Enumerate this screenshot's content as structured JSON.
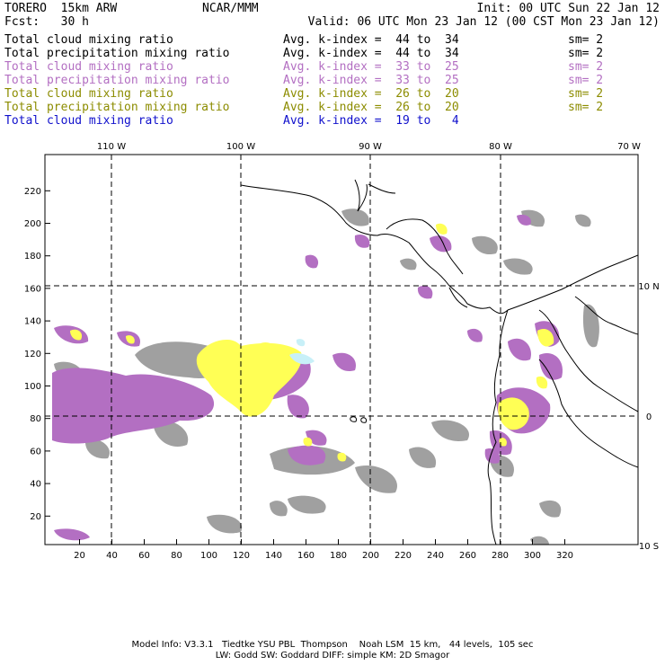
{
  "header": {
    "model": "TORERO  15km ARW",
    "org": "NCAR/MMM",
    "init": "Init: 00 UTC Sun 22 Jan 12",
    "fcst": "Fcst:   30 h",
    "valid": "Valid: 06 UTC Mon 23 Jan 12 (00 CST Mon 23 Jan 12)"
  },
  "legend": [
    {
      "field": "Total cloud mixing ratio",
      "index": "Avg. k-index =  44 to  34",
      "sm": "sm= 2",
      "color": "#000000"
    },
    {
      "field": "Total precipitation mixing ratio",
      "index": "Avg. k-index =  44 to  34",
      "sm": "sm= 2",
      "color": "#000000"
    },
    {
      "field": "Total cloud mixing ratio",
      "index": "Avg. k-index =  33 to  25",
      "sm": "sm= 2",
      "color": "#b36fc2"
    },
    {
      "field": "Total precipitation mixing ratio",
      "index": "Avg. k-index =  33 to  25",
      "sm": "sm= 2",
      "color": "#b36fc2"
    },
    {
      "field": "Total cloud mixing ratio",
      "index": "Avg. k-index =  26 to  20",
      "sm": "sm= 2",
      "color": "#8c8c00"
    },
    {
      "field": "Total precipitation mixing ratio",
      "index": "Avg. k-index =  26 to  20",
      "sm": "sm= 2",
      "color": "#8c8c00"
    },
    {
      "field": "Total cloud mixing ratio",
      "index": "Avg. k-index =  19 to   4",
      "sm": "",
      "color": "#1010cc"
    }
  ],
  "map": {
    "lon_labels": [
      "110 W",
      "100 W",
      "90 W",
      "80 W",
      "70 W"
    ],
    "lat_labels": [
      "10 N",
      "0",
      "10 S"
    ],
    "x_ticks": [
      "20",
      "40",
      "60",
      "80",
      "100",
      "120",
      "140",
      "160",
      "180",
      "200",
      "220",
      "240",
      "260",
      "280",
      "300",
      "320"
    ],
    "y_ticks": [
      "20",
      "40",
      "60",
      "80",
      "100",
      "120",
      "140",
      "160",
      "180",
      "200",
      "220"
    ],
    "colors": {
      "gray": "#a0a0a0",
      "purple": "#b36fc2",
      "yellow": "#ffff55",
      "cyan": "#c8f0f8",
      "coast": "#000000"
    }
  },
  "footer": {
    "line1": "Model Info: V3.3.1   Tiedtke YSU PBL  Thompson    Noah LSM  15 km,   44 levels,  105 sec",
    "line2": "LW: Godd SW: Goddard DIFF: simple KM: 2D Smagor"
  }
}
